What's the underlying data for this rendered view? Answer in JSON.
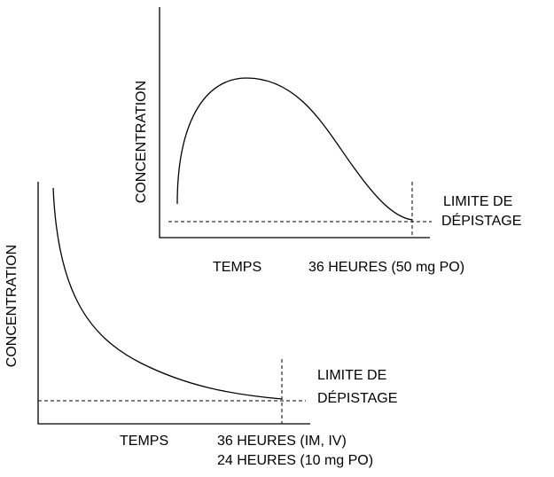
{
  "top_graph": {
    "y_label": "CONCENTRATION",
    "limit_label": [
      "LIMITE DE",
      "DÉPISTAGE"
    ],
    "x_label": "TEMPS",
    "time_labels": [
      "36 HEURES (50 mg PO)"
    ]
  },
  "bottom_graph": {
    "y_label": "CONCENTRATION",
    "limit_label": [
      "LIMITE DE",
      "DÉPISTAGE"
    ],
    "x_label": "TEMPS",
    "time_labels": [
      "36 HEURES (IM, IV)",
      "24 HEURES (10 mg PO)"
    ]
  }
}
